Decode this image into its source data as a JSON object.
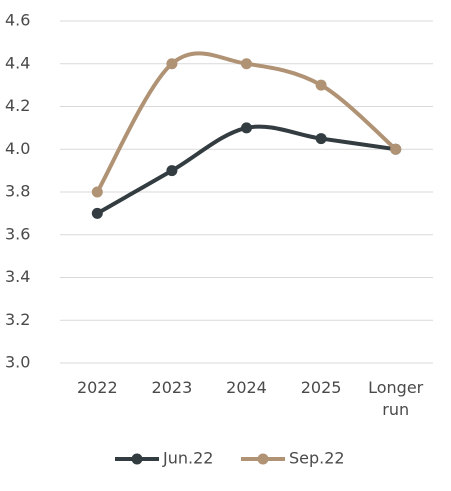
{
  "chart_data": {
    "type": "line",
    "categories": [
      "2022",
      "2023",
      "2024",
      "2025",
      "Longer run"
    ],
    "series": [
      {
        "name": "Jun.22",
        "color": "#333c40",
        "values": [
          3.7,
          3.9,
          4.1,
          4.05,
          4.0
        ]
      },
      {
        "name": "Sep.22",
        "color": "#b09274",
        "values": [
          3.8,
          4.4,
          4.4,
          4.3,
          4.0
        ]
      }
    ],
    "ylim": [
      3.0,
      4.6
    ],
    "yticks": [
      {
        "value": 3.0,
        "label": "3.0"
      },
      {
        "value": 3.2,
        "label": "3.2"
      },
      {
        "value": 3.4,
        "label": "3.4"
      },
      {
        "value": 3.6,
        "label": "3.6"
      },
      {
        "value": 3.8,
        "label": "3.8"
      },
      {
        "value": 4.0,
        "label": "4.0"
      },
      {
        "value": 4.2,
        "label": "4.2"
      },
      {
        "value": 4.4,
        "label": "4.4"
      },
      {
        "value": 4.6,
        "label": "4.6"
      }
    ],
    "grid": true,
    "smooth": true,
    "legend": "bottom"
  }
}
